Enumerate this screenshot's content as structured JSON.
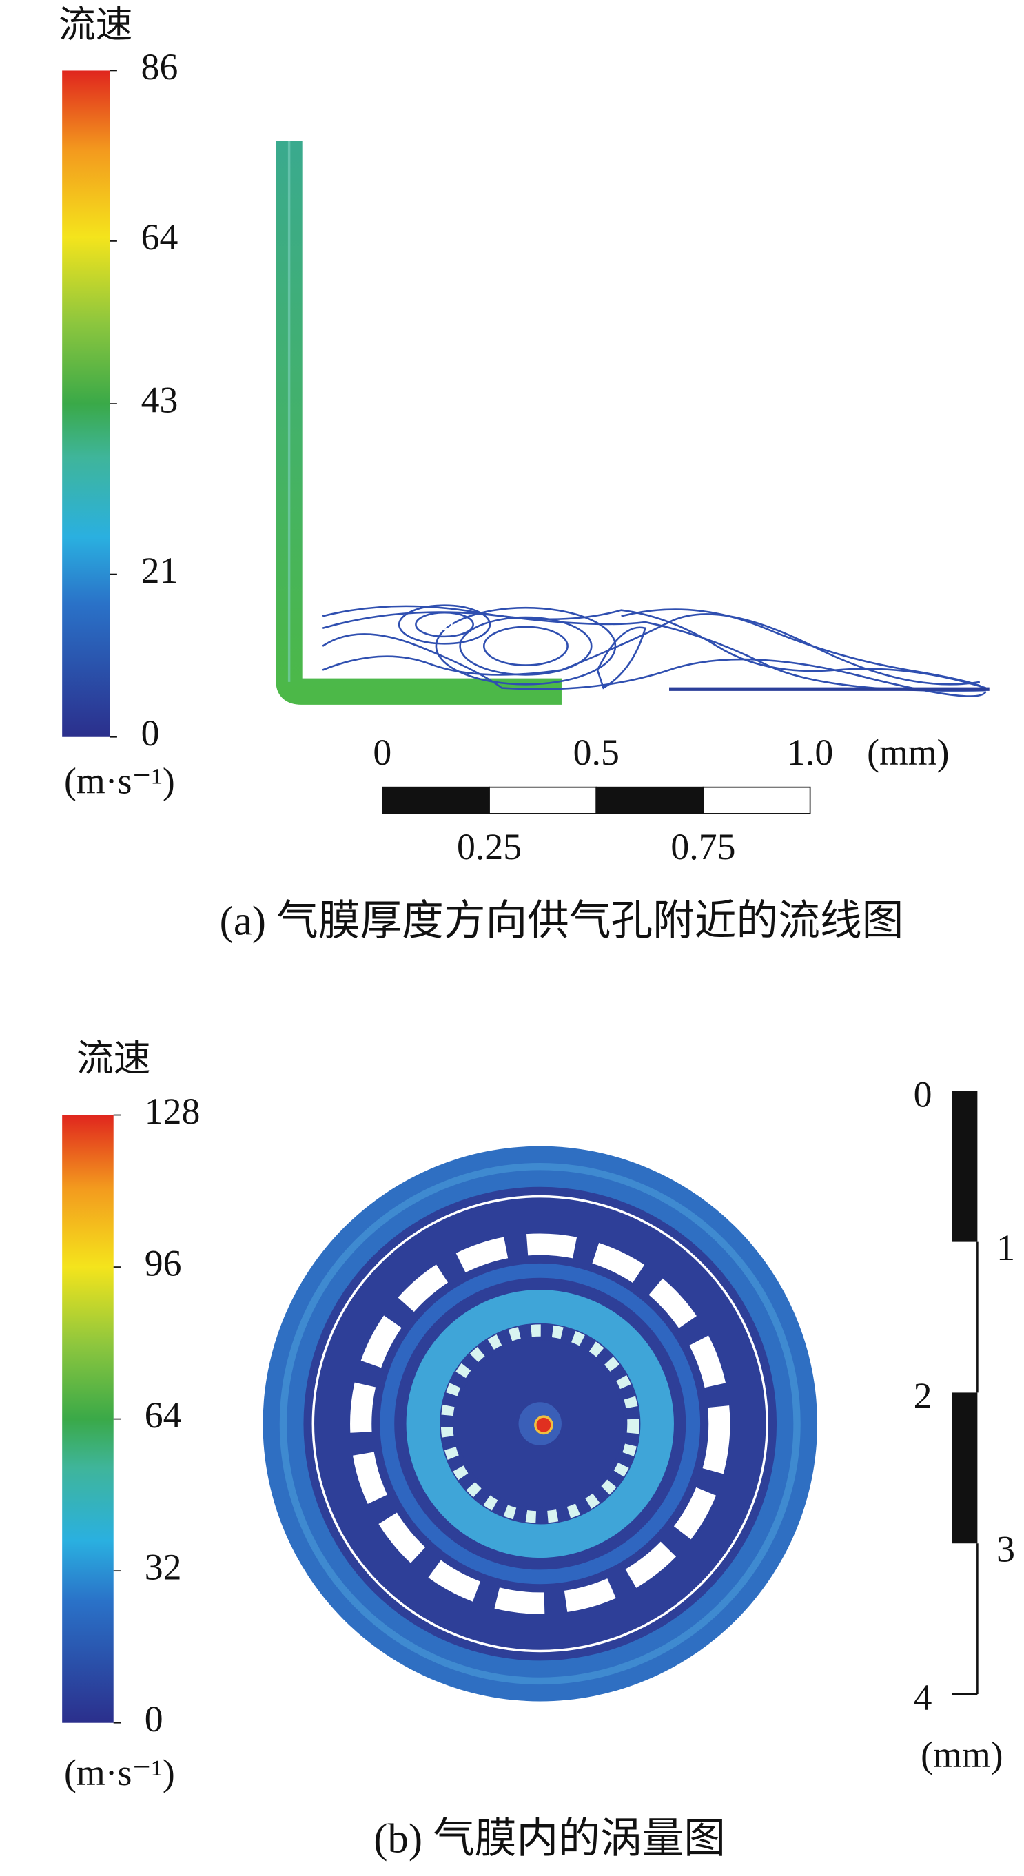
{
  "panel_a": {
    "colorbar": {
      "title": "流速",
      "lim": [
        0,
        86
      ],
      "ticks": [
        0,
        21,
        43,
        64,
        86
      ],
      "unit": "(m·s⁻¹)"
    },
    "scale_bar": {
      "lim": [
        0,
        1
      ],
      "upper_ticks": [
        0,
        0.5,
        {
          "value": 1,
          "label": "1.0"
        }
      ],
      "lower_ticks": [
        0.25,
        0.75
      ],
      "unit": "(mm)"
    },
    "caption": "(a)  气膜厚度方向供气孔附近的流线图"
  },
  "panel_b": {
    "colorbar": {
      "title": "流速",
      "lim": [
        0,
        128
      ],
      "ticks": [
        0,
        32,
        64,
        96,
        128
      ],
      "unit": "(m·s⁻¹)"
    },
    "scale_bar": {
      "lim": [
        0,
        4
      ],
      "left_ticks": [
        0,
        2,
        4
      ],
      "right_ticks": [
        1,
        3
      ],
      "unit": "(mm)"
    },
    "caption": "(b)  气膜内的涡量图"
  }
}
